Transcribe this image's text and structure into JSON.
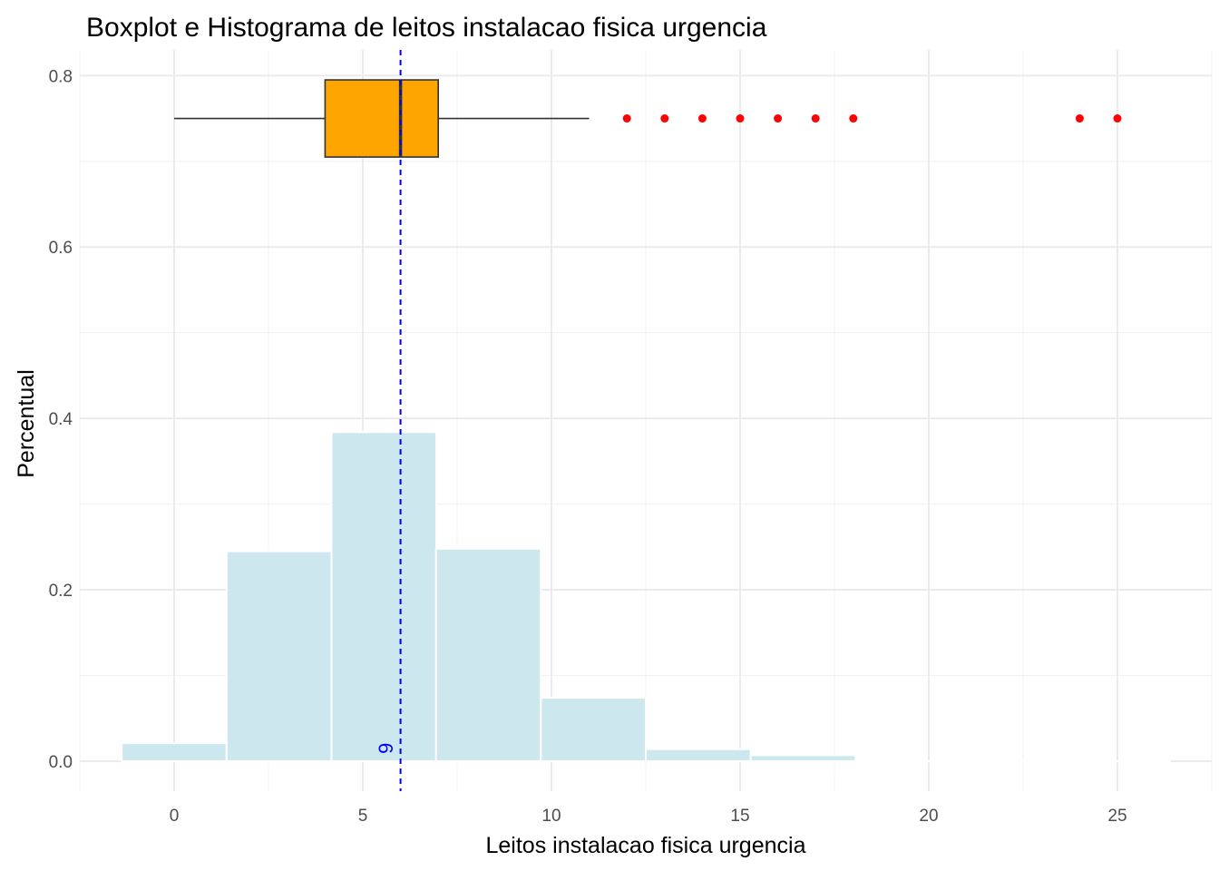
{
  "chart_data": {
    "type": "bar",
    "title": "Boxplot e Histograma de leitos instalacao fisica urgencia",
    "xlabel": "Leitos instalacao fisica urgencia",
    "ylabel": "Percentual",
    "xlim": [
      -2.5,
      27.5
    ],
    "ylim": [
      -0.035,
      0.83
    ],
    "x_ticks": [
      0,
      5,
      10,
      15,
      20,
      25
    ],
    "x_tick_labels": [
      "0",
      "5",
      "10",
      "15",
      "20",
      "25"
    ],
    "y_ticks": [
      0.0,
      0.2,
      0.4,
      0.6,
      0.8
    ],
    "y_tick_labels": [
      "0.0",
      "0.2",
      "0.4",
      "0.6",
      "0.8"
    ],
    "grid": true,
    "histogram": {
      "bin_width": 2.78,
      "bin_centers": [
        0,
        2.78,
        5.56,
        8.33,
        11.11,
        13.89,
        16.67,
        19.44,
        22.22,
        25.0
      ],
      "values": [
        0.021,
        0.245,
        0.384,
        0.248,
        0.074,
        0.014,
        0.007,
        0.0,
        0.0,
        0.0
      ],
      "color": "#cde7ee"
    },
    "boxplot": {
      "y_center": 0.75,
      "y_half_height": 0.045,
      "whisker_low": 0,
      "q1": 4,
      "median": 6,
      "q3": 7,
      "whisker_high": 11,
      "outliers": [
        12,
        13,
        14,
        15,
        16,
        17,
        18,
        24,
        25
      ],
      "box_color": "#ffa500",
      "outlier_color": "#ff0000"
    },
    "median_line": {
      "x": 6,
      "label": "6",
      "color": "#0000ff"
    }
  }
}
